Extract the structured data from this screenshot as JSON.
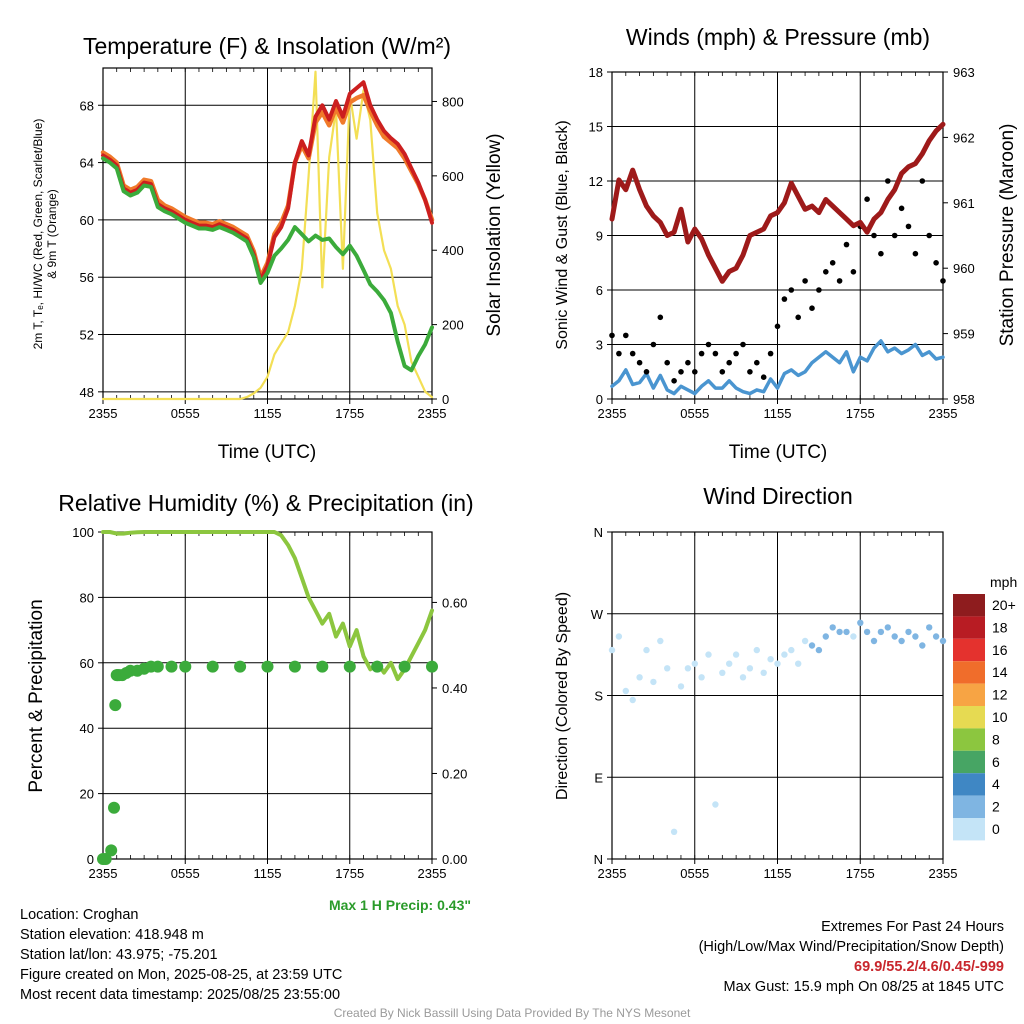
{
  "panels": {
    "temperature": {
      "title": "Temperature (F) & Insolation (W/m²)",
      "ylabel_left": [
        "2m T, Tₑ, HI/WC (Red, Green, Scarlet/Blue)",
        "& 9m T (Orange)"
      ],
      "ylabel_right": "Solar Insolation (Yellow)",
      "xlabel": "Time (UTC)"
    },
    "winds": {
      "title": "Winds (mph) & Pressure (mb)",
      "ylabel_left": "Sonic Wind & Gust (Blue, Black)",
      "ylabel_right": "Station Pressure (Maroon)",
      "xlabel": "Time (UTC)"
    },
    "humidity": {
      "title": "Relative Humidity (%) & Precipitation (in)",
      "ylabel_left": "Percent & Precipitation",
      "annotation": "Max 1 H Precip: 0.43\""
    },
    "direction": {
      "title": "Wind Direction",
      "ylabel_left": "Direction (Colored By Speed)",
      "legend_unit": "mph",
      "legend_labels": [
        "20+",
        "18",
        "16",
        "14",
        "12",
        "10",
        "8",
        "6",
        "4",
        "2",
        "0"
      ],
      "legend_colors": [
        "#8e1c1e",
        "#b81c23",
        "#e4322e",
        "#f06d2b",
        "#f7a444",
        "#e6da52",
        "#8cc63f",
        "#47a564",
        "#3f87c4",
        "#7fb5e2",
        "#c4e4f7"
      ]
    }
  },
  "info": {
    "location": "Location: Croghan",
    "elevation": "Station elevation: 418.948 m",
    "latlon": "Station lat/lon: 43.975; -75.201",
    "created": "Figure created on Mon, 2025-08-25, at 23:59 UTC",
    "recent": "Most recent data timestamp: 2025/08/25 23:55:00",
    "extremes_title": "Extremes For Past 24 Hours",
    "extremes_sub": "(High/Low/Max Wind/Precipitation/Snow Depth)",
    "extremes_values": "69.9/55.2/4.6/0.45/-999",
    "max_gust": "Max Gust: 15.9 mph On 08/25 at 1845 UTC",
    "credit": "Created By Nick Bassill Using Data Provided By The NYS Mesonet"
  },
  "colors": {
    "temp": "#cc1f1f",
    "temp9m": "#f07a2a",
    "dewpoint": "#3bab3b",
    "solar": "#f3df55",
    "wind": "#4a95d0",
    "gust": "#000000",
    "pressure": "#9e1a1a",
    "rh": "#8cc63f",
    "precip": "#3bab3b"
  },
  "chart_data": [
    {
      "id": "temperature",
      "type": "line",
      "title": "Temperature (F) & Insolation (W/m²)",
      "xlabel": "Time (UTC)",
      "x_ticks": [
        "2355",
        "0555",
        "1155",
        "1755",
        "2355"
      ],
      "x_unit": "hours since 2355 UTC",
      "x": [
        0,
        0.5,
        1,
        1.5,
        2,
        2.5,
        3,
        3.5,
        4,
        4.5,
        5,
        5.5,
        6,
        6.5,
        7,
        7.5,
        8,
        8.5,
        9,
        9.5,
        10,
        10.5,
        11,
        11.5,
        12,
        12.5,
        13,
        13.5,
        14,
        14.5,
        15,
        15.5,
        16,
        16.5,
        17,
        17.5,
        18,
        18.5,
        19,
        19.5,
        20,
        20.5,
        21,
        21.5,
        22,
        22.5,
        23,
        23.5,
        24
      ],
      "y_ticks": [
        48,
        52,
        56,
        60,
        64,
        68
      ],
      "ylim": [
        47.5,
        70.6
      ],
      "y2_ticks": [
        0,
        200,
        400,
        600,
        800
      ],
      "y2lim": [
        0,
        890
      ],
      "series": [
        {
          "key": "temp",
          "axis": "left",
          "values": [
            64.5,
            64.2,
            63.8,
            62.2,
            61.9,
            62.1,
            62.6,
            62.5,
            61.1,
            60.8,
            60.6,
            60.3,
            60.0,
            59.8,
            59.6,
            59.6,
            59.5,
            59.7,
            59.5,
            59.3,
            59.0,
            58.7,
            57.6,
            55.8,
            56.8,
            58.8,
            59.5,
            60.8,
            64.0,
            65.5,
            64.5,
            67.2,
            68.0,
            67.0,
            68.3,
            67.2,
            68.8,
            69.2,
            69.6,
            68.0,
            67.0,
            66.2,
            65.7,
            65.3,
            64.6,
            63.6,
            62.6,
            61.4,
            59.8
          ]
        },
        {
          "key": "temp9m",
          "axis": "left",
          "values": [
            64.7,
            64.4,
            64.0,
            62.4,
            62.1,
            62.3,
            62.8,
            62.7,
            61.4,
            61.0,
            60.8,
            60.5,
            60.2,
            60.0,
            59.8,
            59.8,
            59.7,
            59.9,
            59.7,
            59.5,
            59.2,
            58.9,
            57.8,
            56.0,
            57.0,
            59.0,
            59.8,
            61.0,
            64.0,
            65.2,
            64.3,
            66.8,
            67.5,
            66.6,
            67.8,
            66.8,
            68.2,
            68.5,
            68.7,
            67.6,
            66.6,
            65.8,
            65.4,
            65.0,
            64.3,
            63.4,
            62.5,
            61.4,
            60.0
          ]
        },
        {
          "key": "dewpoint",
          "axis": "left",
          "values": [
            64.3,
            64.0,
            63.6,
            62.0,
            61.7,
            61.9,
            62.4,
            62.3,
            60.9,
            60.6,
            60.4,
            60.1,
            59.8,
            59.6,
            59.4,
            59.4,
            59.3,
            59.5,
            59.3,
            59.1,
            58.8,
            58.5,
            57.4,
            55.6,
            56.3,
            57.5,
            58.0,
            58.6,
            59.5,
            59.0,
            58.5,
            58.9,
            58.6,
            58.7,
            58.1,
            57.6,
            58.2,
            57.5,
            56.5,
            55.5,
            55.0,
            54.4,
            53.5,
            51.5,
            49.8,
            49.5,
            50.5,
            51.3,
            52.5
          ]
        },
        {
          "key": "solar",
          "axis": "right",
          "values": [
            0,
            0,
            0,
            0,
            0,
            0,
            0,
            0,
            0,
            0,
            0,
            0,
            0,
            0,
            0,
            0,
            0,
            0,
            0,
            0,
            0,
            5,
            15,
            30,
            60,
            120,
            150,
            180,
            250,
            350,
            600,
            880,
            300,
            650,
            780,
            350,
            820,
            700,
            830,
            750,
            500,
            400,
            350,
            250,
            200,
            100,
            60,
            20,
            5
          ]
        }
      ]
    },
    {
      "id": "winds",
      "type": "line",
      "title": "Winds (mph) & Pressure (mb)",
      "xlabel": "Time (UTC)",
      "x_ticks": [
        "2355",
        "0555",
        "1155",
        "1755",
        "2355"
      ],
      "x_unit": "hours since 2355 UTC",
      "x": [
        0,
        0.5,
        1,
        1.5,
        2,
        2.5,
        3,
        3.5,
        4,
        4.5,
        5,
        5.5,
        6,
        6.5,
        7,
        7.5,
        8,
        8.5,
        9,
        9.5,
        10,
        10.5,
        11,
        11.5,
        12,
        12.5,
        13,
        13.5,
        14,
        14.5,
        15,
        15.5,
        16,
        16.5,
        17,
        17.5,
        18,
        18.5,
        19,
        19.5,
        20,
        20.5,
        21,
        21.5,
        22,
        22.5,
        23,
        23.5,
        24
      ],
      "y_ticks": [
        0,
        3,
        6,
        9,
        12,
        15,
        18
      ],
      "ylim": [
        0,
        18
      ],
      "y2_ticks": [
        958,
        959,
        960,
        961,
        962,
        963
      ],
      "y2lim": [
        958,
        963
      ],
      "series": [
        {
          "key": "pressure",
          "axis": "right",
          "values": [
            960.75,
            961.35,
            961.2,
            961.5,
            961.2,
            960.95,
            960.8,
            960.7,
            960.5,
            960.55,
            960.9,
            960.4,
            960.6,
            960.45,
            960.2,
            960.0,
            959.8,
            959.95,
            960.0,
            960.2,
            960.5,
            960.55,
            960.6,
            960.8,
            960.85,
            961.0,
            961.3,
            961.1,
            960.9,
            960.95,
            960.85,
            961.05,
            960.95,
            960.85,
            960.75,
            960.65,
            960.7,
            960.55,
            960.75,
            960.85,
            961.05,
            961.2,
            961.45,
            961.55,
            961.6,
            961.75,
            961.95,
            962.1,
            962.2
          ]
        },
        {
          "key": "wind",
          "axis": "left",
          "values": [
            0.7,
            1.0,
            1.6,
            0.8,
            0.9,
            1.4,
            0.6,
            1.3,
            0.5,
            0.3,
            0.7,
            0.5,
            0.3,
            0.7,
            1.0,
            0.6,
            0.6,
            1.0,
            0.6,
            0.4,
            0.3,
            0.5,
            0.4,
            1.1,
            0.6,
            1.4,
            1.6,
            1.3,
            1.5,
            2.0,
            2.3,
            2.6,
            2.3,
            2.0,
            2.6,
            1.5,
            2.3,
            2.1,
            2.8,
            3.2,
            2.6,
            2.8,
            2.5,
            2.7,
            3.0,
            2.4,
            2.6,
            2.2,
            2.3
          ]
        },
        {
          "key": "gust",
          "axis": "left",
          "type": "scatter",
          "values": [
            3.5,
            2.5,
            3.5,
            2.5,
            2.0,
            1.5,
            3.0,
            4.5,
            2.0,
            1.0,
            1.5,
            2.0,
            1.5,
            2.5,
            3.0,
            2.5,
            1.5,
            2.0,
            2.5,
            3.0,
            1.5,
            2.0,
            1.2,
            2.5,
            4.0,
            5.5,
            6.0,
            4.5,
            6.5,
            5.0,
            6.0,
            7.0,
            7.5,
            6.5,
            8.5,
            7.0,
            9.5,
            11.0,
            9.0,
            8.0,
            12.0,
            9.0,
            10.5,
            9.5,
            8.0,
            12.0,
            9.0,
            7.5,
            6.5
          ]
        }
      ]
    },
    {
      "id": "humidity",
      "type": "line",
      "title": "Relative Humidity (%) & Precipitation (in)",
      "x_ticks": [
        "2355",
        "0555",
        "1155",
        "1755",
        "2355"
      ],
      "x_unit": "hours since 2355 UTC",
      "x": [
        0,
        0.5,
        1,
        1.5,
        2,
        2.5,
        3,
        3.5,
        4,
        4.5,
        5,
        5.5,
        6,
        6.5,
        7,
        7.5,
        8,
        8.5,
        9,
        9.5,
        10,
        10.5,
        11,
        11.5,
        12,
        12.5,
        13,
        13.5,
        14,
        14.5,
        15,
        15.5,
        16,
        16.5,
        17,
        17.5,
        18,
        18.5,
        19,
        19.5,
        20,
        20.5,
        21,
        21.5,
        22,
        22.5,
        23,
        23.5,
        24
      ],
      "y_ticks": [
        0,
        20,
        40,
        60,
        80,
        100
      ],
      "ylim": [
        0,
        100
      ],
      "y2_ticks": [
        0.0,
        0.2,
        0.4,
        0.6
      ],
      "y2lim": [
        0,
        0.7647
      ],
      "series": [
        {
          "key": "rh",
          "axis": "left",
          "values": [
            100,
            100,
            99.5,
            99.5,
            99.8,
            99.9,
            100,
            100,
            100,
            100,
            100,
            100,
            100,
            100,
            100,
            100,
            100,
            100,
            100,
            100,
            100,
            100,
            100,
            100,
            100,
            100,
            99,
            96,
            92,
            86,
            80,
            76,
            72,
            75,
            68,
            72,
            65,
            70,
            62,
            58,
            60,
            57,
            60,
            55,
            58,
            62,
            66,
            70,
            76
          ]
        },
        {
          "key": "precip",
          "axis": "right",
          "type": "scatter",
          "x": [
            0,
            0.2,
            0.6,
            0.8,
            0.9,
            1.0,
            1.05,
            1.1,
            1.2,
            1.4,
            1.7,
            2.0,
            2.5,
            3.0,
            3.5,
            4.0,
            5,
            6,
            8,
            10,
            12,
            14,
            16,
            18,
            20,
            22,
            24
          ],
          "values": [
            0,
            0,
            0.02,
            0.12,
            0.36,
            0.43,
            0.43,
            0.43,
            0.43,
            0.43,
            0.435,
            0.44,
            0.44,
            0.445,
            0.45,
            0.45,
            0.45,
            0.45,
            0.45,
            0.45,
            0.45,
            0.45,
            0.45,
            0.45,
            0.45,
            0.45,
            0.45
          ]
        }
      ]
    },
    {
      "id": "direction",
      "type": "scatter",
      "title": "Wind Direction",
      "x_ticks": [
        "2355",
        "0555",
        "1155",
        "1755",
        "2355"
      ],
      "x_unit": "hours since 2355 UTC",
      "y_ticks": [
        "N",
        "E",
        "S",
        "W",
        "N"
      ],
      "ylim": [
        0,
        360
      ],
      "x": [
        0,
        0.5,
        1,
        1.5,
        2,
        2.5,
        3,
        3.5,
        4,
        4.5,
        5,
        5.5,
        6,
        6.5,
        7,
        7.5,
        8,
        8.5,
        9,
        9.5,
        10,
        10.5,
        11,
        11.5,
        12,
        12.5,
        13,
        13.5,
        14,
        14.5,
        15,
        15.5,
        16,
        16.5,
        17,
        17.5,
        18,
        18.5,
        19,
        19.5,
        20,
        20.5,
        21,
        21.5,
        22,
        22.5,
        23,
        23.5,
        24
      ],
      "direction_deg": [
        230,
        245,
        185,
        175,
        200,
        230,
        195,
        240,
        210,
        30,
        190,
        210,
        215,
        200,
        225,
        60,
        205,
        215,
        225,
        200,
        210,
        230,
        205,
        220,
        215,
        225,
        230,
        215,
        240,
        235,
        230,
        245,
        255,
        250,
        250,
        245,
        260,
        250,
        240,
        250,
        255,
        245,
        240,
        250,
        245,
        235,
        255,
        245,
        240
      ],
      "speed_mph": [
        0.7,
        1.0,
        1.6,
        0.8,
        0.9,
        1.4,
        0.6,
        1.3,
        0.5,
        0.3,
        0.7,
        0.5,
        0.3,
        0.7,
        1.0,
        0.6,
        0.6,
        1.0,
        0.6,
        0.4,
        0.3,
        0.5,
        0.4,
        1.1,
        0.6,
        1.4,
        1.6,
        1.3,
        1.5,
        2.0,
        2.3,
        2.6,
        2.3,
        2.0,
        2.6,
        1.5,
        2.3,
        2.1,
        2.8,
        3.2,
        2.6,
        2.8,
        2.5,
        2.7,
        3.0,
        2.4,
        2.6,
        2.2,
        2.3
      ]
    }
  ]
}
